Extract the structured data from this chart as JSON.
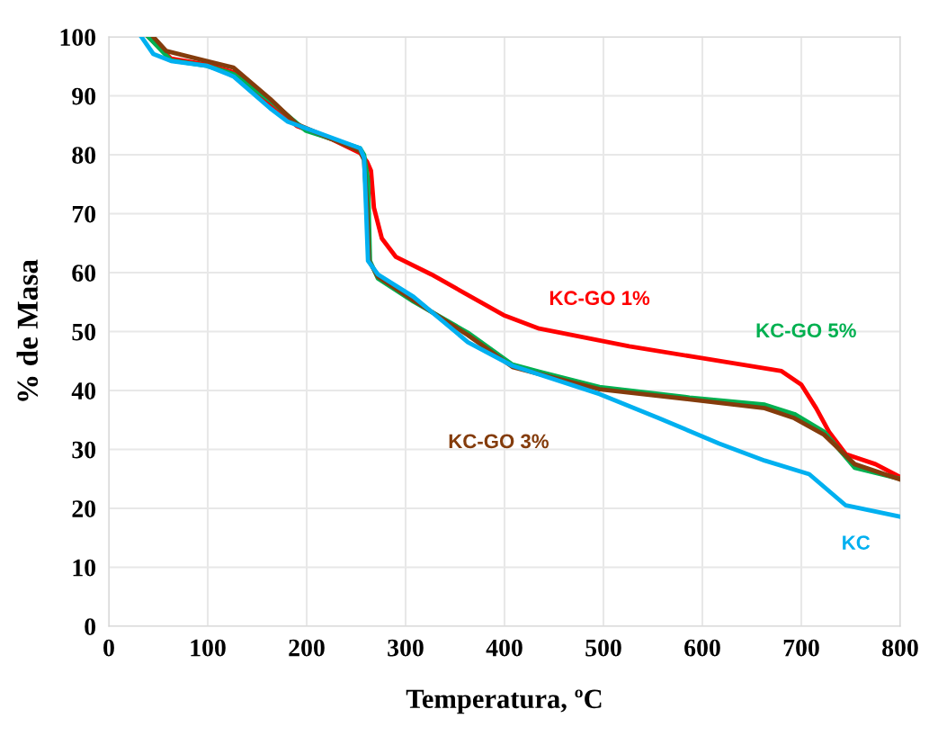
{
  "chart_data": {
    "type": "line",
    "xlabel": "Temperatura, ºC",
    "ylabel": "% de Masa",
    "xlim": [
      0,
      800
    ],
    "ylim": [
      0,
      100
    ],
    "xticks": [
      0,
      100,
      200,
      300,
      400,
      500,
      600,
      700,
      800
    ],
    "yticks": [
      0,
      10,
      20,
      30,
      40,
      50,
      60,
      70,
      80,
      90,
      100
    ],
    "grid": true,
    "legend": false,
    "marker": "none",
    "line_style": "solid",
    "series": [
      {
        "name": "KC-GO 1%",
        "color": "#ff0000",
        "x": [
          40,
          63,
          99,
          126,
          163,
          190,
          226,
          254,
          261,
          265,
          268,
          276,
          290,
          326,
          399,
          435,
          526,
          599,
          680,
          700,
          715,
          728,
          745,
          775,
          800
        ],
        "values": [
          100,
          96.3,
          95.3,
          94,
          88.7,
          84.9,
          82.6,
          80.3,
          78.8,
          77.3,
          71,
          65.8,
          62.7,
          59.7,
          52.8,
          50.5,
          47.5,
          45.5,
          43.3,
          41,
          37,
          33,
          29.2,
          27.5,
          25.3
        ]
      },
      {
        "name": "KC-GO 5%",
        "color": "#00b050",
        "x": [
          40,
          63,
          99,
          126,
          163,
          199,
          254,
          258,
          262,
          264,
          272,
          308,
          363,
          408,
          435,
          496,
          587,
          663,
          693,
          723,
          754,
          800
        ],
        "values": [
          100,
          96,
          95.1,
          93.7,
          89.2,
          84.1,
          81.1,
          80,
          75.7,
          62,
          59,
          55.1,
          49.8,
          44.4,
          43.2,
          40.6,
          38.8,
          37.6,
          36,
          33,
          26.9,
          25
        ]
      },
      {
        "name": "KC-GO 3%",
        "color": "#843c0c",
        "x": [
          45,
          58,
          99,
          126,
          163,
          190,
          254,
          258,
          261,
          263,
          272,
          308,
          363,
          408,
          435,
          496,
          587,
          663,
          693,
          723,
          754,
          800
        ],
        "values": [
          100,
          97.6,
          95.9,
          94.8,
          89.5,
          85.2,
          80.6,
          79.1,
          71,
          62,
          59.3,
          55.3,
          49.4,
          44,
          42.8,
          40.2,
          38.5,
          37,
          35.3,
          32.5,
          27.5,
          24.9
        ]
      },
      {
        "name": "KC",
        "color": "#00b0f0",
        "x": [
          33,
          45,
          63,
          99,
          126,
          163,
          181,
          217,
          254,
          258,
          260,
          262,
          272,
          308,
          363,
          408,
          496,
          556,
          617,
          663,
          708,
          745,
          800
        ],
        "values": [
          100,
          97.1,
          95.9,
          95.1,
          93.3,
          87.9,
          85.6,
          83.4,
          81.1,
          79.5,
          71,
          62,
          59.7,
          55.9,
          48.2,
          44.2,
          39.4,
          35.3,
          31,
          28.1,
          25.8,
          20.5,
          18.6
        ]
      }
    ]
  }
}
